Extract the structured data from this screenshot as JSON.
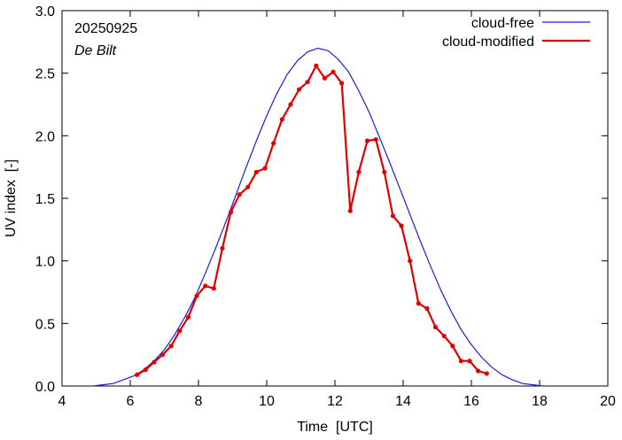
{
  "chart_data": {
    "type": "line",
    "date_label": "20250925",
    "station_label": "De Bilt",
    "xlabel": "Time  [UTC]",
    "ylabel": "UV index  [-]",
    "xlim": [
      4,
      20
    ],
    "ylim": [
      0,
      3.0
    ],
    "x_ticks": [
      4,
      6,
      8,
      10,
      12,
      14,
      16,
      18,
      20
    ],
    "x_tick_labels": [
      "4",
      "6",
      "8",
      "10",
      "12",
      "14",
      "16",
      "18",
      "20"
    ],
    "y_ticks": [
      0,
      0.5,
      1.0,
      1.5,
      2.0,
      2.5,
      3.0
    ],
    "y_tick_labels": [
      "0.0",
      "0.5",
      "1.0",
      "1.5",
      "2.0",
      "2.5",
      "3.0"
    ],
    "legend_position": "top-right",
    "series": [
      {
        "name": "cloud-free",
        "color": "#1c1ce0",
        "markers": false,
        "x": [
          4.9,
          5.2,
          5.5,
          5.8,
          6.1,
          6.4,
          6.7,
          7.0,
          7.3,
          7.6,
          7.9,
          8.2,
          8.5,
          8.8,
          9.1,
          9.4,
          9.7,
          10.0,
          10.3,
          10.6,
          10.9,
          11.2,
          11.5,
          11.8,
          12.1,
          12.4,
          12.7,
          13.0,
          13.3,
          13.6,
          13.9,
          14.2,
          14.5,
          14.8,
          15.1,
          15.4,
          15.7,
          16.0,
          16.3,
          16.6,
          16.9,
          17.2,
          17.5,
          17.8,
          18.1
        ],
        "y": [
          0.0,
          0.01,
          0.02,
          0.05,
          0.08,
          0.13,
          0.2,
          0.29,
          0.41,
          0.55,
          0.71,
          0.9,
          1.1,
          1.31,
          1.53,
          1.75,
          1.96,
          2.16,
          2.34,
          2.49,
          2.6,
          2.67,
          2.7,
          2.68,
          2.61,
          2.51,
          2.36,
          2.19,
          1.99,
          1.79,
          1.58,
          1.37,
          1.16,
          0.96,
          0.77,
          0.6,
          0.45,
          0.33,
          0.23,
          0.15,
          0.09,
          0.05,
          0.02,
          0.01,
          0.0
        ]
      },
      {
        "name": "cloud-modified",
        "color": "#e00000",
        "markers": true,
        "x": [
          6.2,
          6.45,
          6.7,
          6.95,
          7.2,
          7.45,
          7.7,
          7.95,
          8.2,
          8.45,
          8.7,
          8.95,
          9.2,
          9.45,
          9.7,
          9.95,
          10.2,
          10.45,
          10.7,
          10.95,
          11.2,
          11.45,
          11.7,
          11.95,
          12.2,
          12.45,
          12.7,
          12.95,
          13.2,
          13.45,
          13.7,
          13.95,
          14.2,
          14.45,
          14.7,
          14.95,
          15.2,
          15.45,
          15.7,
          15.95,
          16.2,
          16.45
        ],
        "y": [
          0.09,
          0.13,
          0.19,
          0.25,
          0.32,
          0.44,
          0.55,
          0.72,
          0.8,
          0.78,
          1.1,
          1.39,
          1.53,
          1.59,
          1.71,
          1.74,
          1.94,
          2.13,
          2.25,
          2.37,
          2.43,
          2.56,
          2.46,
          2.51,
          2.42,
          1.4,
          1.71,
          1.96,
          1.97,
          1.71,
          1.36,
          1.28,
          1.0,
          0.66,
          0.62,
          0.47,
          0.4,
          0.32,
          0.2,
          0.2,
          0.12,
          0.1
        ]
      }
    ]
  }
}
